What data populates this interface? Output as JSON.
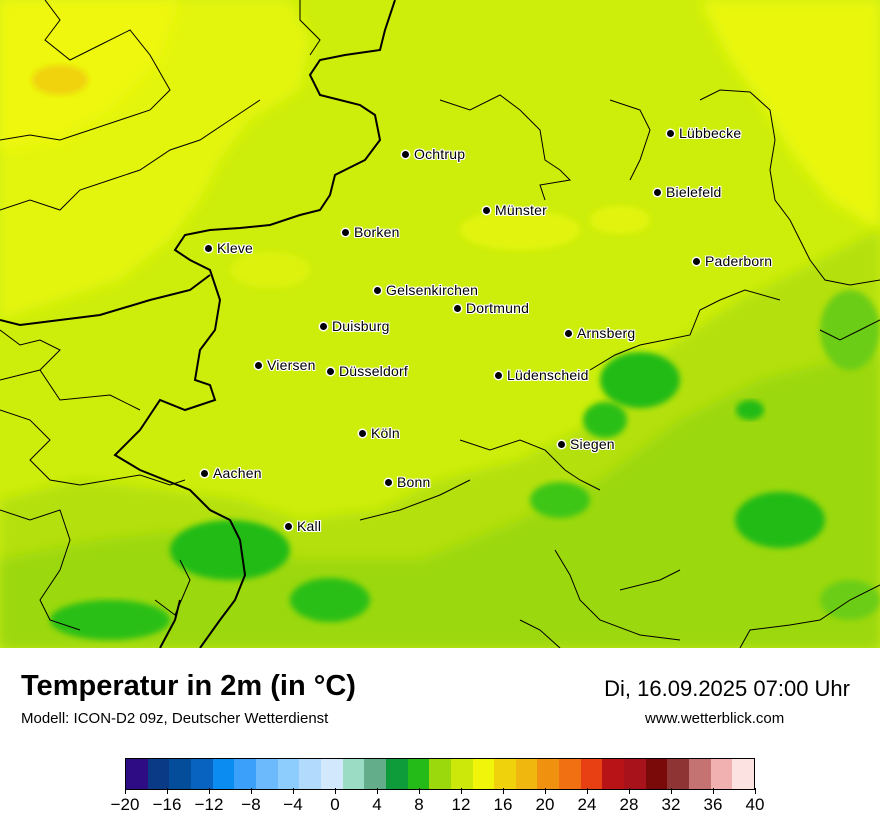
{
  "title": "Temperatur in 2m (in °C)",
  "model": "Modell: ICON-D2 09z, Deutscher Wetterdienst",
  "datetime": "Di, 16.09.2025 07:00 Uhr",
  "website": "www.wetterblick.com",
  "cities": [
    {
      "name": "Lübbecke"
    },
    {
      "name": "Ochtrup"
    },
    {
      "name": "Bielefeld"
    },
    {
      "name": "Münster"
    },
    {
      "name": "Borken"
    },
    {
      "name": "Kleve"
    },
    {
      "name": "Paderborn"
    },
    {
      "name": "Gelsenkirchen"
    },
    {
      "name": "Dortmund"
    },
    {
      "name": "Duisburg"
    },
    {
      "name": "Arnsberg"
    },
    {
      "name": "Viersen"
    },
    {
      "name": "Düsseldorf"
    },
    {
      "name": "Lüdenscheid"
    },
    {
      "name": "Köln"
    },
    {
      "name": "Siegen"
    },
    {
      "name": "Aachen"
    },
    {
      "name": "Bonn"
    },
    {
      "name": "Kall"
    }
  ],
  "legend": {
    "colors": [
      "#2d0c84",
      "#0a3a86",
      "#044d9a",
      "#0763bf",
      "#0a8cf0",
      "#3aa0f9",
      "#6cbafc",
      "#8ccdfd",
      "#b1dafd",
      "#d2e9fd",
      "#9adcc4",
      "#64ad8a",
      "#0e9b3a",
      "#24bb18",
      "#9bd80c",
      "#cce80a",
      "#f0f50a",
      "#f0d20c",
      "#f0b70e",
      "#f09210",
      "#f07012",
      "#e84012",
      "#b81418",
      "#a8121a",
      "#7a0a0a",
      "#8e3434",
      "#c47272",
      "#f2b1b1",
      "#fde2e2"
    ],
    "tick_labels": [
      "−20",
      "−16",
      "−12",
      "−8",
      "−4",
      "0",
      "4",
      "8",
      "12",
      "16",
      "20",
      "24",
      "28",
      "32",
      "36",
      "40"
    ]
  }
}
